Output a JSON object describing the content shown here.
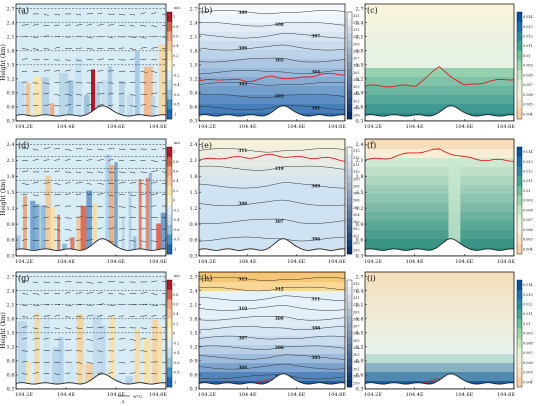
{
  "figure": {
    "ylabel": "Height (km)",
    "x_ticks": [
      "104.2E",
      "104.4E",
      "104.6E",
      "104.8E"
    ],
    "y_ticks_tall": [
      "0.3",
      "0.6",
      "0.9",
      "1.2",
      "1.5",
      "1.8",
      "2.1",
      "2.4",
      "2.7"
    ],
    "y_ticks_short": [
      "0.3",
      "0.6",
      "0.9",
      "1.2",
      "1.5",
      "1.8",
      "2.1",
      "2.4"
    ],
    "wind_colorbar": {
      "unit": "m/s",
      "ticks": [
        "1",
        "0.8",
        "0.6",
        "0.4",
        "0.2",
        "0",
        "-0.2",
        "-0.4",
        "-0.6",
        "-0.8",
        "-1"
      ]
    },
    "theta_colorbar": {
      "ticks": [
        "313",
        "312",
        "311",
        "310",
        "309",
        "308",
        "307",
        "306",
        "305",
        "304",
        "303",
        "302",
        "301",
        "300",
        "299"
      ]
    },
    "q_colorbar": {
      "ticks": [
        "0.014",
        "0.013",
        "0.012",
        "0.011",
        "0.01",
        "0.009",
        "0.008",
        "0.007",
        "0.006",
        "0.005",
        "0.004"
      ]
    },
    "vector_key": {
      "label": "W*15",
      "sub": "4"
    },
    "colors": {
      "warm": "#d7191c",
      "cool": "#2c7bb6",
      "pbl_line": "#e41a1c",
      "terrain": "#222222"
    }
  },
  "chart_data": [
    {
      "panel": "a",
      "type": "heatmap",
      "field": "vertical wind with vectors",
      "xlabel": "",
      "ylabel": "Height (km)",
      "xlim": [
        104.2,
        104.8
      ],
      "ylim": [
        0.3,
        2.8
      ],
      "cbar_range": [
        -1,
        1
      ],
      "cbar_unit": "m/s"
    },
    {
      "panel": "b",
      "type": "heatmap",
      "field": "potential temperature",
      "contour_labels": [
        "309",
        "308",
        "307",
        "306",
        "305",
        "304",
        "303",
        "302",
        "301"
      ],
      "pbl_height_km": [
        1.15,
        1.2,
        1.15,
        1.25,
        1.2,
        1.3,
        1.3
      ],
      "xlim": [
        104.2,
        104.8
      ],
      "ylim": [
        0.3,
        2.8
      ],
      "cbar_range": [
        299,
        313
      ]
    },
    {
      "panel": "c",
      "type": "heatmap",
      "field": "specific humidity",
      "pbl_height_km": [
        1.05,
        1.05,
        1.05,
        1.45,
        1.05,
        1.15,
        1.2
      ],
      "xlim": [
        104.2,
        104.8
      ],
      "ylim": [
        0.3,
        2.8
      ],
      "cbar_range": [
        0.004,
        0.014
      ]
    },
    {
      "panel": "d",
      "type": "heatmap",
      "field": "vertical wind with vectors",
      "ylabel": "Height (km)",
      "xlim": [
        104.2,
        104.8
      ],
      "ylim": [
        0.3,
        2.5
      ],
      "cbar_range": [
        -1,
        1
      ],
      "cbar_unit": "m/s"
    },
    {
      "panel": "e",
      "type": "heatmap",
      "field": "potential temperature",
      "contour_labels": [
        "311",
        "310",
        "309",
        "308",
        "307",
        "306"
      ],
      "pbl_height_km": [
        2.1,
        2.15,
        2.15,
        2.2,
        2.15,
        2.15,
        2.1
      ],
      "xlim": [
        104.2,
        104.8
      ],
      "ylim": [
        0.3,
        2.5
      ],
      "cbar_range": [
        299,
        313
      ]
    },
    {
      "panel": "f",
      "type": "heatmap",
      "field": "specific humidity",
      "pbl_height_km": [
        2.1,
        2.15,
        2.25,
        2.3,
        2.15,
        2.1,
        2.1
      ],
      "xlim": [
        104.2,
        104.8
      ],
      "ylim": [
        0.3,
        2.5
      ],
      "cbar_range": [
        0.004,
        0.014
      ]
    },
    {
      "panel": "g",
      "type": "heatmap",
      "field": "vertical wind with vectors",
      "ylabel": "Height (km)",
      "xlim": [
        104.2,
        104.8
      ],
      "ylim": [
        0.3,
        2.8
      ],
      "cbar_range": [
        -1,
        1
      ],
      "cbar_unit": "m/s"
    },
    {
      "panel": "h",
      "type": "heatmap",
      "field": "potential temperature",
      "contour_labels": [
        "313",
        "312",
        "311",
        "310",
        "309",
        "308",
        "307",
        "306",
        "305",
        "304",
        "303"
      ],
      "pbl_height_km": [
        0.4,
        0.4,
        0.4,
        0.5,
        0.4,
        0.4,
        0.4
      ],
      "xlim": [
        104.2,
        104.8
      ],
      "ylim": [
        0.3,
        2.8
      ],
      "cbar_range": [
        299,
        313
      ]
    },
    {
      "panel": "i",
      "type": "heatmap",
      "field": "specific humidity",
      "pbl_height_km": [
        0.4,
        0.4,
        0.4,
        0.5,
        0.4,
        0.4,
        0.4
      ],
      "xlim": [
        104.2,
        104.8
      ],
      "ylim": [
        0.3,
        2.8
      ],
      "cbar_range": [
        0.004,
        0.014
      ]
    }
  ]
}
